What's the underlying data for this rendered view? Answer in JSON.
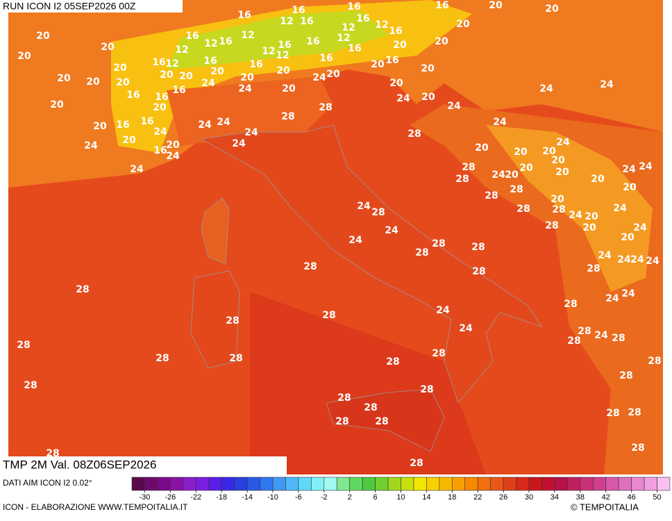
{
  "header": {
    "run": "RUN ICON I2 05SEP2026 00Z",
    "field": "TMP 2M Val. 08Z06SEP2026"
  },
  "map": {
    "contour_labels": [
      16,
      16,
      16,
      16,
      20,
      20,
      12,
      16,
      16,
      12,
      12,
      16,
      20,
      20,
      16,
      12,
      16,
      12,
      12,
      16,
      16,
      12,
      12,
      20,
      20,
      12,
      16,
      12,
      16,
      16,
      16,
      16,
      20,
      20,
      20,
      16,
      20,
      20,
      20,
      20,
      20,
      20,
      20,
      24,
      20,
      20,
      20,
      20,
      24,
      24,
      20,
      20,
      16,
      16,
      16,
      20,
      24,
      24,
      24,
      20,
      20,
      28,
      28,
      24,
      20,
      16,
      16,
      24,
      24,
      24,
      24,
      24,
      28,
      20,
      24,
      20,
      24,
      16,
      20,
      24,
      20,
      20,
      24,
      28,
      28,
      24,
      20,
      20,
      20,
      20,
      24,
      24,
      20,
      20,
      28,
      28,
      20,
      24,
      24,
      28,
      28,
      28,
      24,
      20,
      24,
      24,
      28,
      20,
      24,
      24,
      28,
      28,
      20,
      28,
      28,
      28,
      24,
      24,
      24,
      24,
      28,
      28,
      28,
      24,
      24,
      24,
      28,
      28,
      24,
      28,
      28,
      28,
      24,
      28,
      28,
      28,
      28,
      28,
      28,
      28,
      28,
      28,
      28,
      28,
      28,
      28,
      28,
      28,
      28,
      28,
      28
    ]
  },
  "colorbar": {
    "range": [
      -32,
      52
    ],
    "ticks": [
      -30,
      -26,
      -22,
      -18,
      -14,
      -10,
      -6,
      -2,
      2,
      6,
      10,
      14,
      18,
      22,
      26,
      30,
      34,
      38,
      42,
      46,
      50
    ],
    "colors": [
      "#5a0a4a",
      "#6e0a6e",
      "#7a0a8a",
      "#8a10a8",
      "#8a1ec8",
      "#7a1ee0",
      "#5a1ee8",
      "#3a28e8",
      "#2840e0",
      "#2858e8",
      "#3078f0",
      "#4098f0",
      "#50b8f8",
      "#60d8f8",
      "#80f0f8",
      "#a0f8f0",
      "#80e890",
      "#60d860",
      "#50c840",
      "#70d030",
      "#a0d820",
      "#c8e010",
      "#f0e800",
      "#f8d000",
      "#f8b800",
      "#f8a000",
      "#f88800",
      "#f07010",
      "#e85818",
      "#e04018",
      "#d82818",
      "#c81818",
      "#c01030",
      "#b81048",
      "#c02060",
      "#c83078",
      "#d04090",
      "#d858a8",
      "#e070c0",
      "#e888d0",
      "#f0a0e0",
      "#f8c0f0"
    ]
  },
  "footer": {
    "source": "DATI AIM ICON I2 0.02°",
    "credit": "ICON - ELABORAZIONE WWW.TEMPOITALIA.IT",
    "copyright": "© TEMPOITALIA"
  }
}
